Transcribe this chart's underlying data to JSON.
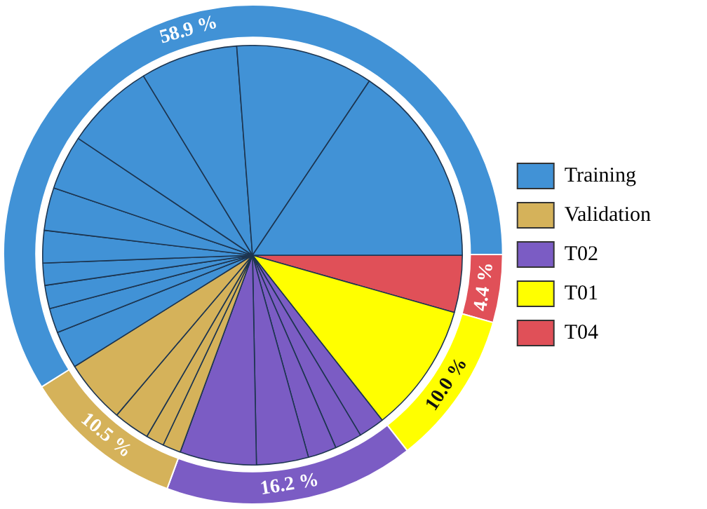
{
  "chart_data": [
    {
      "type": "donut",
      "categories": [
        "T04",
        "T01",
        "T02",
        "Validation",
        "Training"
      ],
      "values": [
        4.4,
        10.0,
        16.2,
        10.5,
        58.9
      ],
      "colors": [
        "#e05058",
        "#ffff00",
        "#7b5cc4",
        "#d5b25a",
        "#4192d6"
      ],
      "value_labels": [
        "4.4 %",
        "10.0 %",
        "16.2 %",
        "10.5 %",
        "58.9 %"
      ],
      "legend": "right"
    },
    {
      "type": "pie",
      "categories": [
        null,
        null,
        null,
        null,
        null,
        null,
        null,
        null,
        null,
        null,
        null,
        null,
        null,
        null,
        null,
        null,
        null,
        null,
        null,
        null,
        null,
        null
      ],
      "values": [
        4.4,
        10.0,
        2.0,
        2.1,
        2.2,
        4.0,
        5.9,
        1.4,
        1.4,
        2.8,
        4.9,
        2.9,
        1.9,
        1.8,
        1.7,
        2.5,
        3.3,
        4.2,
        6.9,
        7.5,
        10.6,
        15.6
      ],
      "colors": [
        "#e05058",
        "#ffff00",
        "#7b5cc4",
        "#7b5cc4",
        "#7b5cc4",
        "#7b5cc4",
        "#7b5cc4",
        "#d5b25a",
        "#d5b25a",
        "#d5b25a",
        "#d5b25a",
        "#4192d6",
        "#4192d6",
        "#4192d6",
        "#4192d6",
        "#4192d6",
        "#4192d6",
        "#4192d6",
        "#4192d6",
        "#4192d6",
        "#4192d6",
        "#4192d6"
      ]
    }
  ]
}
